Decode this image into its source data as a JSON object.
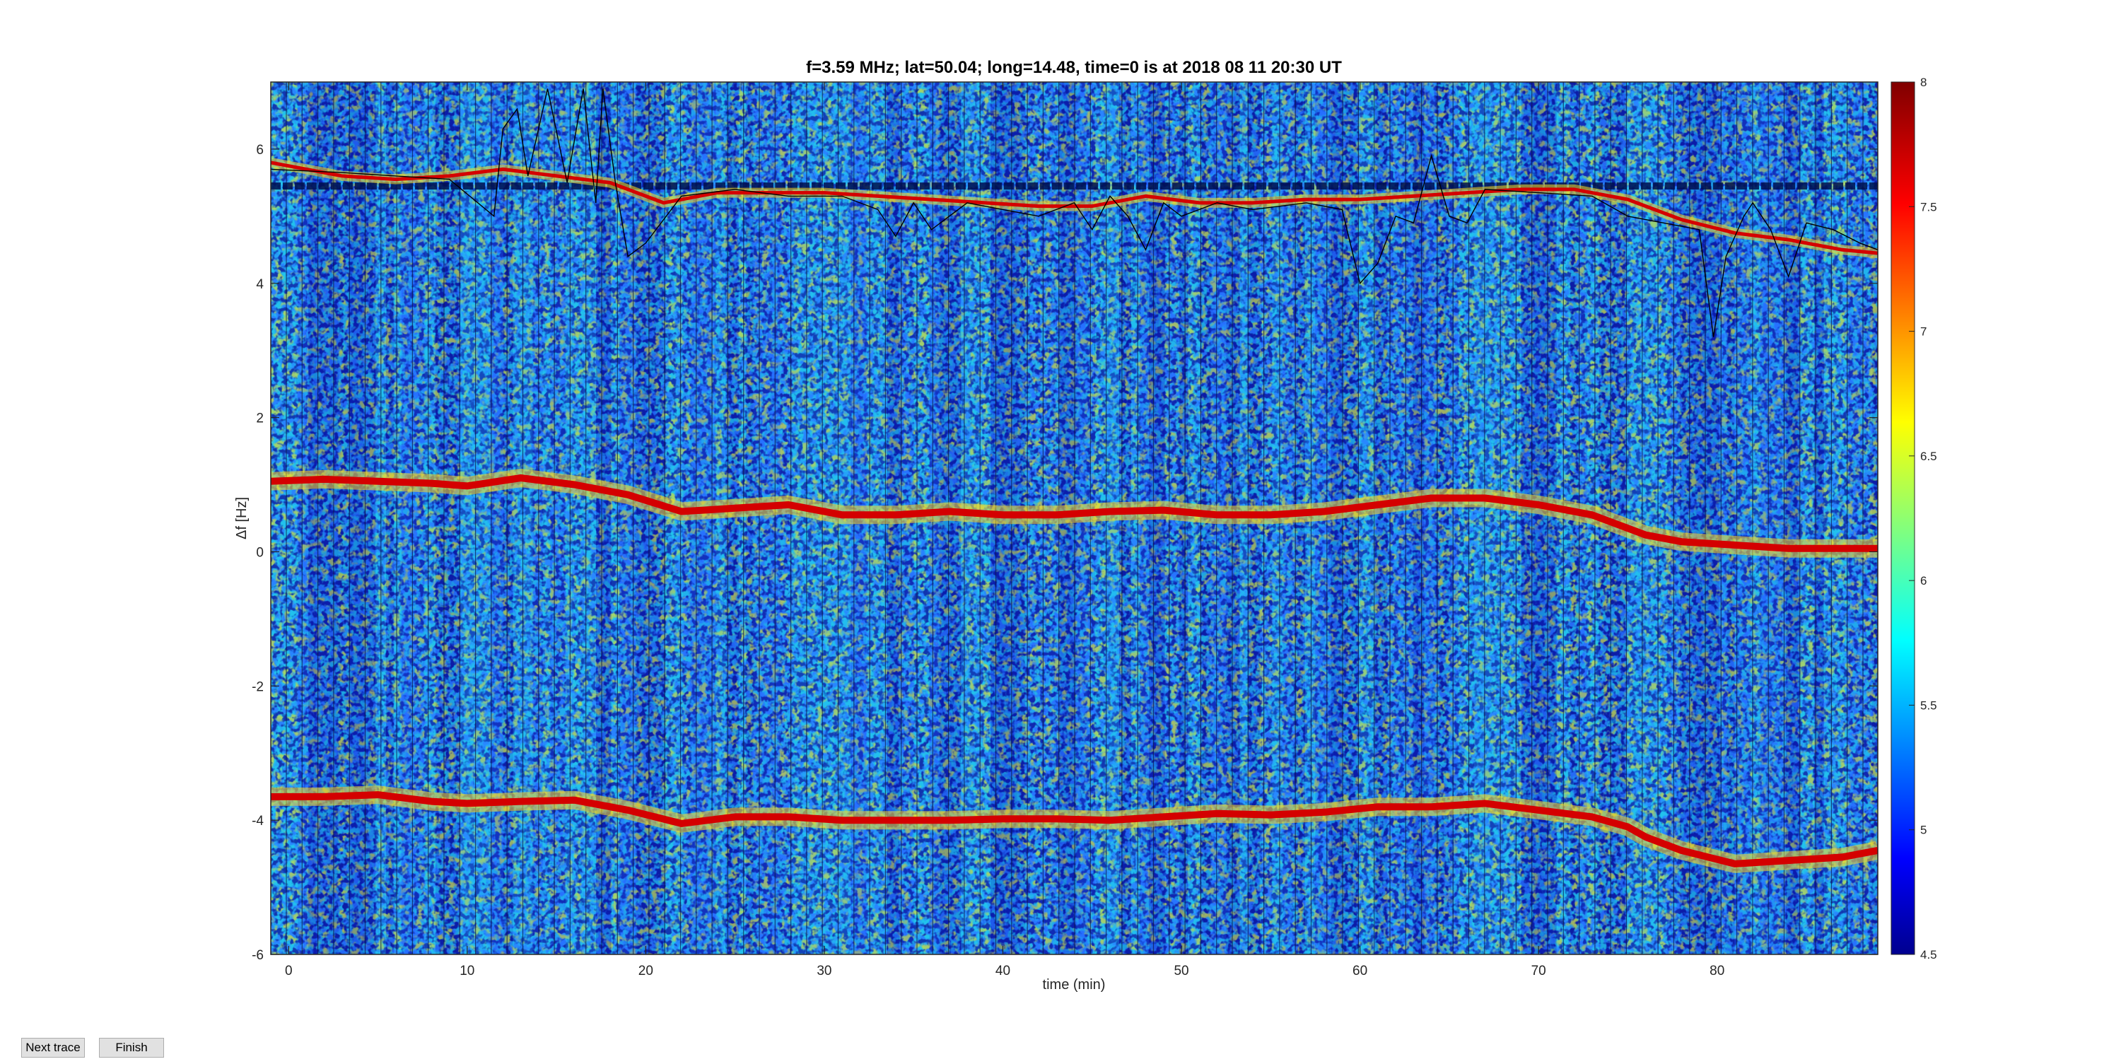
{
  "buttons": {
    "next_trace": "Next trace",
    "finish": "Finish"
  },
  "chart_data": {
    "type": "heatmap",
    "title": "f=3.59 MHz;  lat=50.04; long=14.48, time=0 is at 2018 08 11 20:30 UT",
    "xlabel": "time (min)",
    "ylabel": "Δf [Hz]",
    "xlim": [
      -1,
      89
    ],
    "ylim": [
      -6,
      7
    ],
    "xticks": [
      0,
      10,
      20,
      30,
      40,
      50,
      60,
      70,
      80
    ],
    "yticks": [
      -6,
      -4,
      -2,
      0,
      2,
      4,
      6
    ],
    "colormap": "jet",
    "clim": [
      4.5,
      8
    ],
    "colorbar_ticks": [
      "4.5",
      "5",
      "5.5",
      "6",
      "6.5",
      "7",
      "7.5",
      "8"
    ],
    "colors": {
      "background_level": "#2b7bff",
      "trace": "#d40000",
      "overlay_line": "#000000"
    },
    "traces": [
      {
        "x": [
          -1,
          2,
          5,
          8,
          10,
          13,
          16,
          19,
          22,
          25,
          28,
          31,
          34,
          37,
          40,
          43,
          46,
          49,
          52,
          55,
          58,
          61,
          64,
          67,
          70,
          73,
          75,
          76,
          78,
          81,
          84,
          87,
          89
        ],
        "y": [
          1.05,
          1.08,
          1.05,
          1.02,
          0.98,
          1.1,
          1.0,
          0.85,
          0.6,
          0.65,
          0.7,
          0.55,
          0.55,
          0.6,
          0.55,
          0.55,
          0.6,
          0.62,
          0.55,
          0.55,
          0.6,
          0.7,
          0.8,
          0.8,
          0.7,
          0.55,
          0.35,
          0.25,
          0.15,
          0.1,
          0.05,
          0.05,
          0.05
        ]
      },
      {
        "x": [
          -1,
          2,
          5,
          8,
          10,
          13,
          16,
          19,
          22,
          25,
          28,
          31,
          34,
          37,
          40,
          43,
          46,
          49,
          52,
          55,
          58,
          61,
          64,
          67,
          70,
          73,
          75,
          76,
          78,
          81,
          84,
          87,
          89
        ],
        "y": [
          -3.65,
          -3.65,
          -3.62,
          -3.72,
          -3.75,
          -3.72,
          -3.7,
          -3.85,
          -4.05,
          -3.95,
          -3.95,
          -4.0,
          -4.0,
          -4.0,
          -3.98,
          -3.98,
          -4.0,
          -3.95,
          -3.9,
          -3.92,
          -3.88,
          -3.8,
          -3.8,
          -3.75,
          -3.85,
          -3.95,
          -4.1,
          -4.25,
          -4.45,
          -4.65,
          -4.6,
          -4.55,
          -4.45
        ]
      },
      {
        "x": [
          -1,
          3,
          6,
          9,
          12,
          15,
          18,
          21,
          24,
          27,
          30,
          33,
          36,
          39,
          42,
          45,
          48,
          51,
          54,
          57,
          60,
          63,
          66,
          69,
          72,
          75,
          78,
          81,
          84,
          87,
          89
        ],
        "y": [
          5.8,
          5.6,
          5.55,
          5.6,
          5.7,
          5.6,
          5.5,
          5.2,
          5.35,
          5.35,
          5.35,
          5.3,
          5.25,
          5.2,
          5.15,
          5.15,
          5.3,
          5.2,
          5.2,
          5.25,
          5.25,
          5.3,
          5.35,
          5.4,
          5.4,
          5.25,
          4.95,
          4.75,
          4.65,
          4.5,
          4.45
        ]
      }
    ],
    "dark_band": {
      "y": 5.45
    },
    "overlay": {
      "x": [
        -1,
        3,
        6,
        9,
        11.5,
        12,
        12.8,
        13.4,
        14.5,
        15.6,
        16.5,
        17.2,
        17.6,
        18.3,
        19,
        20,
        22,
        25,
        28,
        31,
        33,
        34,
        35,
        36,
        38,
        40,
        42,
        44,
        45,
        46,
        47,
        48,
        49,
        50,
        51,
        52,
        54,
        57,
        59,
        60,
        61,
        62,
        63,
        64,
        65,
        66,
        67,
        70,
        73,
        75,
        77,
        79,
        79.8,
        80.5,
        81.5,
        82,
        83,
        84,
        85,
        86.5,
        88,
        89
      ],
      "y": [
        5.7,
        5.65,
        5.6,
        5.55,
        5.0,
        6.3,
        6.6,
        5.6,
        6.9,
        5.5,
        6.9,
        5.2,
        6.9,
        5.5,
        4.4,
        4.6,
        5.3,
        5.4,
        5.3,
        5.3,
        5.1,
        4.7,
        5.2,
        4.8,
        5.2,
        5.1,
        5.0,
        5.2,
        4.8,
        5.3,
        5.0,
        4.5,
        5.2,
        5.0,
        5.1,
        5.2,
        5.1,
        5.2,
        5.1,
        4.0,
        4.3,
        5.0,
        4.9,
        5.9,
        5.0,
        4.9,
        5.4,
        5.35,
        5.3,
        5.0,
        4.9,
        4.8,
        3.2,
        4.4,
        5.0,
        5.2,
        4.8,
        4.1,
        4.9,
        4.8,
        4.6,
        4.5
      ]
    }
  }
}
